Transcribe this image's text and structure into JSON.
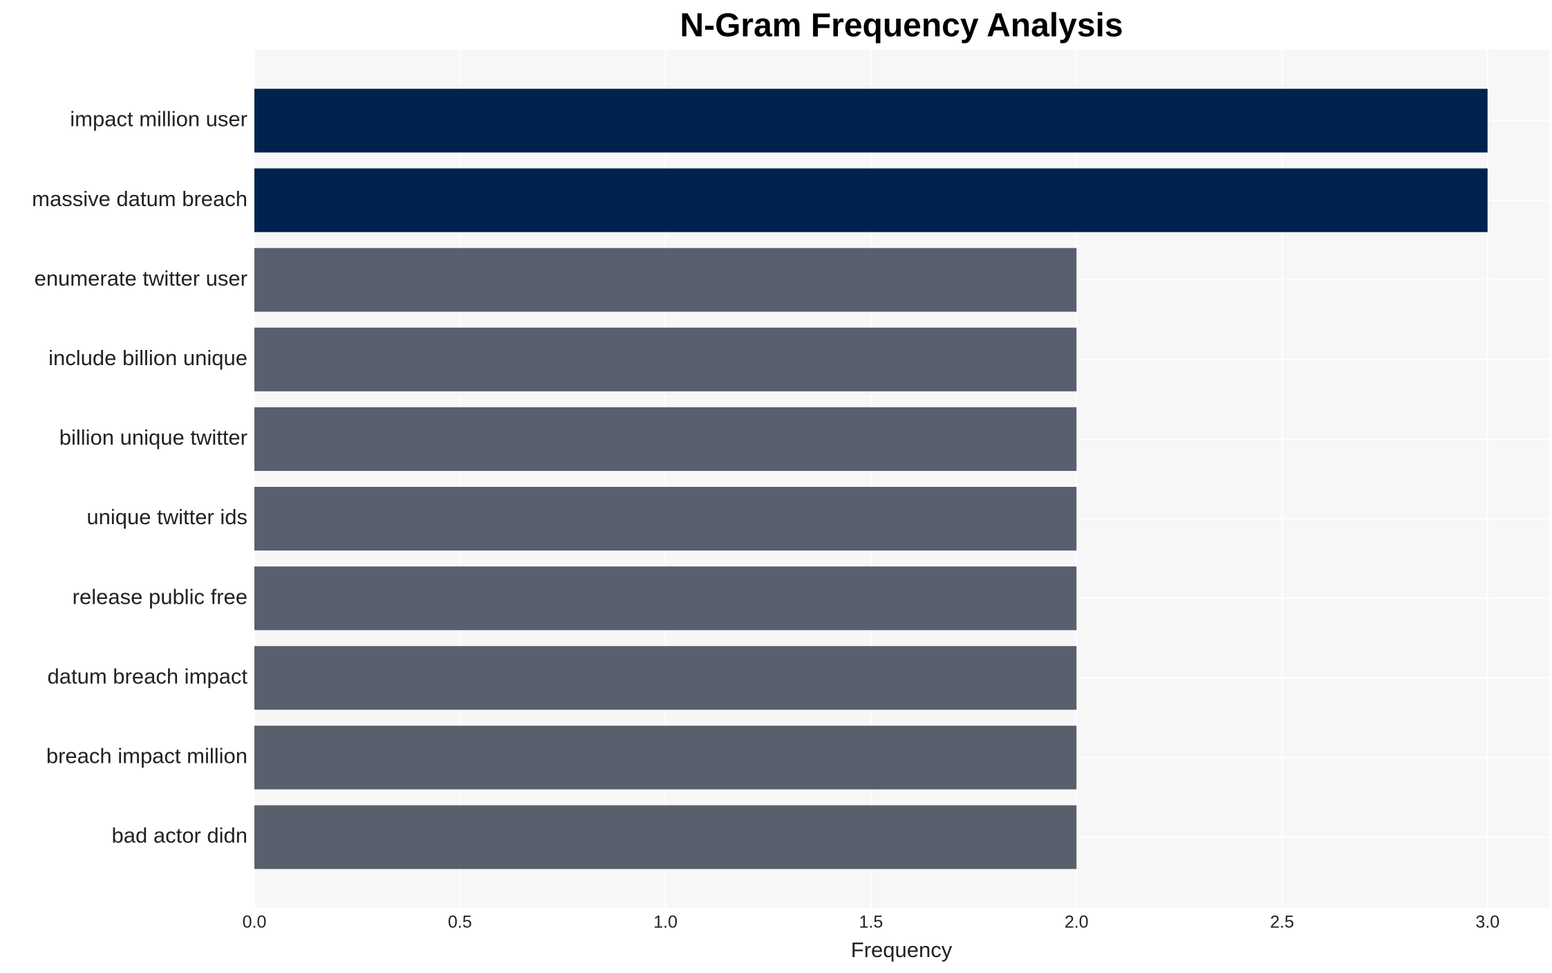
{
  "chart_data": {
    "type": "barh",
    "title": "N-Gram Frequency Analysis",
    "xlabel": "Frequency",
    "categories": [
      "impact million user",
      "massive datum breach",
      "enumerate twitter user",
      "include billion unique",
      "billion unique twitter",
      "unique twitter ids",
      "release public free",
      "datum breach impact",
      "breach impact million",
      "bad actor didn"
    ],
    "values": [
      3,
      3,
      2,
      2,
      2,
      2,
      2,
      2,
      2,
      2
    ],
    "colors": [
      "#00224e",
      "#00224e",
      "#5a5f6e",
      "#5a5f6e",
      "#5a5f6e",
      "#5a5f6e",
      "#5a5f6e",
      "#5a5f6e",
      "#5a5f6e",
      "#5a5f6e"
    ],
    "xlim": [
      0,
      3.15
    ],
    "xticks": [
      {
        "value": 0,
        "label": "0.0"
      },
      {
        "value": 0.5,
        "label": "0.5"
      },
      {
        "value": 1,
        "label": "1.0"
      },
      {
        "value": 1.5,
        "label": "1.5"
      },
      {
        "value": 2,
        "label": "2.0"
      },
      {
        "value": 2.5,
        "label": "2.5"
      },
      {
        "value": 3,
        "label": "3.0"
      }
    ],
    "grid": true
  }
}
